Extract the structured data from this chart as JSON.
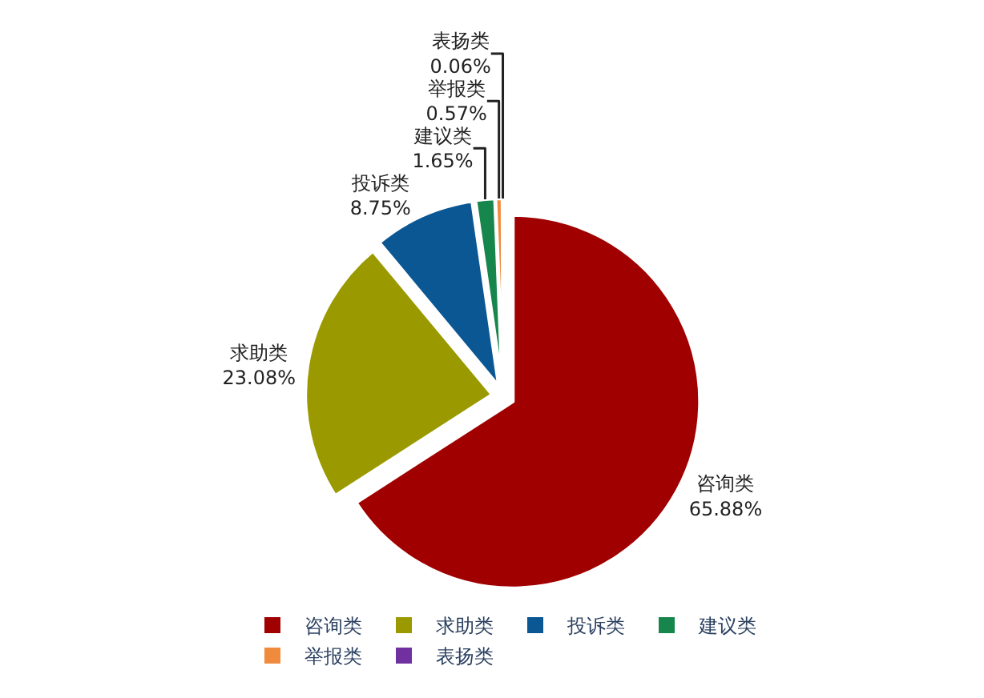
{
  "chart_data": {
    "type": "pie",
    "categories": [
      "咨询类",
      "求助类",
      "投诉类",
      "建议类",
      "举报类",
      "表扬类"
    ],
    "values": [
      65.88,
      23.08,
      8.75,
      1.65,
      0.57,
      0.06
    ],
    "colors": [
      "#a00000",
      "#9a9a00",
      "#0b5794",
      "#17864c",
      "#f08a3c",
      "#7030a0"
    ],
    "value_labels": [
      "65.88%",
      "23.08%",
      "8.75%",
      "1.65%",
      "0.57%",
      "0.06%"
    ],
    "legend": "bottom"
  }
}
